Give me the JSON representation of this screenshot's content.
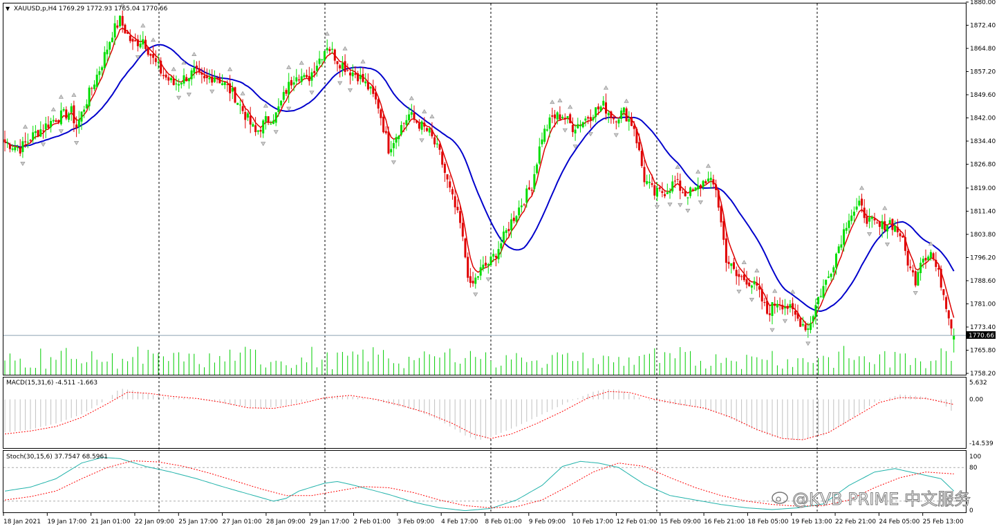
{
  "window": {
    "symbol_info": "XAUUSD,p,H4  1769.29 1772.93 1765.04 1770.66",
    "collapse_icon": "triangle-down-icon"
  },
  "current_price": "1770.66",
  "watermark": {
    "text": "@KVB PRIME 中文服务",
    "icon": "weibo-icon"
  },
  "colors": {
    "bull": "#00dd00",
    "bear": "#e00000",
    "ma_fast": "#dd0000",
    "ma_slow": "#0000cc",
    "volume": "#00cc00",
    "macd_hist": "#c0c0c0",
    "macd_signal": "#ff0000",
    "stoch_main": "#20b2aa",
    "stoch_signal": "#ff0000",
    "grid": "#000000"
  },
  "chart_data": [
    {
      "type": "candlestick",
      "title": "XAUUSD,p,H4",
      "price_axis_ticks": [
        "1880.00",
        "1872.40",
        "1864.80",
        "1857.20",
        "1849.60",
        "1842.00",
        "1834.40",
        "1826.80",
        "1819.00",
        "1811.40",
        "1803.80",
        "1796.20",
        "1788.60",
        "1781.00",
        "1773.40",
        "1765.80",
        "1758.20"
      ],
      "ylim": [
        1758.2,
        1880.0
      ],
      "time_axis_ticks": [
        "18 Jan 2021",
        "19 Jan 17:00",
        "21 Jan 01:00",
        "22 Jan 09:00",
        "25 Jan 17:00",
        "27 Jan 01:00",
        "28 Jan 09:00",
        "29 Jan 17:00",
        "2 Feb 01:00",
        "3 Feb 09:00",
        "4 Feb 17:00",
        "8 Feb 01:00",
        "9 Feb 09:00",
        "10 Feb 17:00",
        "12 Feb 01:00",
        "15 Feb 09:00",
        "16 Feb 21:00",
        "18 Feb 05:00",
        "19 Feb 13:00",
        "22 Feb 21:00",
        "24 Feb 05:00",
        "25 Feb 13:00"
      ],
      "last_bar": {
        "open": 1769.29,
        "high": 1772.93,
        "low": 1765.04,
        "close": 1770.66
      },
      "close_path": [
        [
          0,
          1834
        ],
        [
          6,
          1832
        ],
        [
          12,
          1837
        ],
        [
          20,
          1842
        ],
        [
          26,
          1844
        ],
        [
          28,
          1839
        ],
        [
          33,
          1850
        ],
        [
          38,
          1860
        ],
        [
          42,
          1870
        ],
        [
          45,
          1874
        ],
        [
          50,
          1866
        ],
        [
          54,
          1868
        ],
        [
          58,
          1861
        ],
        [
          62,
          1856
        ],
        [
          66,
          1853
        ],
        [
          70,
          1855
        ],
        [
          74,
          1857
        ],
        [
          78,
          1854
        ],
        [
          82,
          1856
        ],
        [
          86,
          1853
        ],
        [
          90,
          1849
        ],
        [
          94,
          1843
        ],
        [
          98,
          1837
        ],
        [
          102,
          1841
        ],
        [
          106,
          1843
        ],
        [
          110,
          1851
        ],
        [
          114,
          1857
        ],
        [
          118,
          1854
        ],
        [
          122,
          1860
        ],
        [
          126,
          1866
        ],
        [
          130,
          1861
        ],
        [
          134,
          1858
        ],
        [
          138,
          1856
        ],
        [
          142,
          1852
        ],
        [
          146,
          1846
        ],
        [
          150,
          1832
        ],
        [
          154,
          1838
        ],
        [
          158,
          1843
        ],
        [
          162,
          1840
        ],
        [
          166,
          1837
        ],
        [
          170,
          1830
        ],
        [
          174,
          1818
        ],
        [
          178,
          1807
        ],
        [
          182,
          1786
        ],
        [
          186,
          1792
        ],
        [
          190,
          1795
        ],
        [
          194,
          1801
        ],
        [
          198,
          1808
        ],
        [
          202,
          1814
        ],
        [
          206,
          1820
        ],
        [
          210,
          1836
        ],
        [
          214,
          1842
        ],
        [
          218,
          1843
        ],
        [
          222,
          1839
        ],
        [
          226,
          1841
        ],
        [
          230,
          1844
        ],
        [
          234,
          1846
        ],
        [
          238,
          1842
        ],
        [
          242,
          1844
        ],
        [
          246,
          1839
        ],
        [
          250,
          1822
        ],
        [
          254,
          1817
        ],
        [
          258,
          1818
        ],
        [
          262,
          1821
        ],
        [
          266,
          1817
        ],
        [
          270,
          1818
        ],
        [
          274,
          1822
        ],
        [
          278,
          1819
        ],
        [
          282,
          1796
        ],
        [
          286,
          1790
        ],
        [
          290,
          1789
        ],
        [
          294,
          1786
        ],
        [
          298,
          1778
        ],
        [
          302,
          1782
        ],
        [
          306,
          1780
        ],
        [
          310,
          1776
        ],
        [
          314,
          1773
        ],
        [
          318,
          1783
        ],
        [
          322,
          1790
        ],
        [
          326,
          1800
        ],
        [
          330,
          1810
        ],
        [
          334,
          1813
        ],
        [
          338,
          1808
        ],
        [
          342,
          1806
        ],
        [
          346,
          1808
        ],
        [
          350,
          1804
        ],
        [
          354,
          1792
        ],
        [
          356,
          1789
        ],
        [
          358,
          1796
        ],
        [
          362,
          1798
        ],
        [
          366,
          1788
        ],
        [
          368,
          1781
        ],
        [
          371,
          1771
        ]
      ],
      "bars": 372,
      "volume_scale_max": 100
    },
    {
      "type": "histogram+line",
      "title": "MACD(15,31,6) -4.511 -1.663",
      "values": {
        "macd": -4.511,
        "signal": -1.663
      },
      "ticks": [
        "5.632",
        "0.00",
        "-14.539"
      ],
      "ylim": [
        -14.539,
        5.632
      ],
      "macd_path": [
        [
          0,
          -11
        ],
        [
          10,
          -10
        ],
        [
          20,
          -8
        ],
        [
          30,
          -5
        ],
        [
          40,
          0
        ],
        [
          45,
          3.6
        ],
        [
          50,
          3
        ],
        [
          60,
          1
        ],
        [
          70,
          0.5
        ],
        [
          80,
          -0.5
        ],
        [
          90,
          -2
        ],
        [
          100,
          -3
        ],
        [
          110,
          -2
        ],
        [
          120,
          0
        ],
        [
          130,
          1.4
        ],
        [
          140,
          0.5
        ],
        [
          150,
          -1.5
        ],
        [
          160,
          -3.5
        ],
        [
          170,
          -7
        ],
        [
          180,
          -12
        ],
        [
          185,
          -13.6
        ],
        [
          190,
          -12.5
        ],
        [
          200,
          -9
        ],
        [
          210,
          -5
        ],
        [
          220,
          -1
        ],
        [
          230,
          2.5
        ],
        [
          235,
          3.4
        ],
        [
          240,
          3.2
        ],
        [
          250,
          0
        ],
        [
          260,
          -1.5
        ],
        [
          270,
          -2.5
        ],
        [
          280,
          -5
        ],
        [
          290,
          -9
        ],
        [
          300,
          -12.5
        ],
        [
          310,
          -13.6
        ],
        [
          320,
          -12
        ],
        [
          330,
          -7
        ],
        [
          340,
          -1
        ],
        [
          350,
          1.6
        ],
        [
          360,
          0.8
        ],
        [
          366,
          -1
        ],
        [
          371,
          -4.5
        ]
      ],
      "signal_path": [
        [
          0,
          -11.5
        ],
        [
          10,
          -10.5
        ],
        [
          20,
          -9
        ],
        [
          30,
          -6
        ],
        [
          40,
          -1.5
        ],
        [
          48,
          2.4
        ],
        [
          56,
          2
        ],
        [
          65,
          1
        ],
        [
          75,
          0.3
        ],
        [
          85,
          -1
        ],
        [
          95,
          -2.8
        ],
        [
          105,
          -3
        ],
        [
          115,
          -1.5
        ],
        [
          125,
          0.5
        ],
        [
          135,
          1.3
        ],
        [
          145,
          0
        ],
        [
          155,
          -2
        ],
        [
          165,
          -4.5
        ],
        [
          175,
          -8
        ],
        [
          183,
          -11.5
        ],
        [
          190,
          -13
        ],
        [
          198,
          -11.5
        ],
        [
          208,
          -8
        ],
        [
          218,
          -4
        ],
        [
          228,
          0.5
        ],
        [
          236,
          2.6
        ],
        [
          244,
          2.3
        ],
        [
          254,
          0
        ],
        [
          264,
          -1.6
        ],
        [
          274,
          -3
        ],
        [
          284,
          -6
        ],
        [
          294,
          -10
        ],
        [
          304,
          -13
        ],
        [
          312,
          -13.4
        ],
        [
          322,
          -11
        ],
        [
          332,
          -6
        ],
        [
          342,
          -1
        ],
        [
          350,
          0.6
        ],
        [
          360,
          0.3
        ],
        [
          371,
          -1.7
        ]
      ]
    },
    {
      "type": "line",
      "title": "Stoch(30,15,6) 37.7547 68.5961",
      "values": {
        "main": 37.7547,
        "signal": 68.5961
      },
      "ticks": [
        "100",
        "80",
        "0"
      ],
      "levels": [
        80,
        20
      ],
      "ylim": [
        0,
        100
      ],
      "main_path": [
        [
          0,
          38
        ],
        [
          10,
          45
        ],
        [
          20,
          60
        ],
        [
          30,
          88
        ],
        [
          38,
          98
        ],
        [
          45,
          96
        ],
        [
          55,
          82
        ],
        [
          65,
          72
        ],
        [
          75,
          60
        ],
        [
          85,
          46
        ],
        [
          95,
          33
        ],
        [
          105,
          20
        ],
        [
          110,
          25
        ],
        [
          115,
          38
        ],
        [
          120,
          45
        ],
        [
          125,
          52
        ],
        [
          130,
          55
        ],
        [
          135,
          50
        ],
        [
          140,
          44
        ],
        [
          150,
          32
        ],
        [
          160,
          18
        ],
        [
          170,
          8
        ],
        [
          180,
          3
        ],
        [
          190,
          7
        ],
        [
          200,
          22
        ],
        [
          210,
          48
        ],
        [
          218,
          82
        ],
        [
          225,
          91
        ],
        [
          232,
          88
        ],
        [
          240,
          80
        ],
        [
          250,
          50
        ],
        [
          260,
          30
        ],
        [
          270,
          22
        ],
        [
          280,
          14
        ],
        [
          290,
          8
        ],
        [
          300,
          5
        ],
        [
          310,
          8
        ],
        [
          320,
          15
        ],
        [
          330,
          48
        ],
        [
          340,
          72
        ],
        [
          348,
          78
        ],
        [
          356,
          70
        ],
        [
          366,
          60
        ],
        [
          371,
          38
        ]
      ],
      "signal_path": [
        [
          0,
          22
        ],
        [
          10,
          28
        ],
        [
          20,
          38
        ],
        [
          30,
          60
        ],
        [
          40,
          80
        ],
        [
          50,
          92
        ],
        [
          60,
          90
        ],
        [
          70,
          82
        ],
        [
          80,
          70
        ],
        [
          90,
          56
        ],
        [
          100,
          42
        ],
        [
          110,
          30
        ],
        [
          120,
          30
        ],
        [
          130,
          38
        ],
        [
          140,
          46
        ],
        [
          150,
          44
        ],
        [
          160,
          35
        ],
        [
          170,
          22
        ],
        [
          180,
          12
        ],
        [
          190,
          8
        ],
        [
          200,
          10
        ],
        [
          210,
          22
        ],
        [
          220,
          46
        ],
        [
          230,
          72
        ],
        [
          240,
          88
        ],
        [
          250,
          82
        ],
        [
          260,
          62
        ],
        [
          270,
          44
        ],
        [
          280,
          30
        ],
        [
          290,
          20
        ],
        [
          300,
          14
        ],
        [
          310,
          11
        ],
        [
          320,
          12
        ],
        [
          330,
          22
        ],
        [
          340,
          44
        ],
        [
          350,
          62
        ],
        [
          360,
          72
        ],
        [
          371,
          68.6
        ]
      ]
    }
  ]
}
